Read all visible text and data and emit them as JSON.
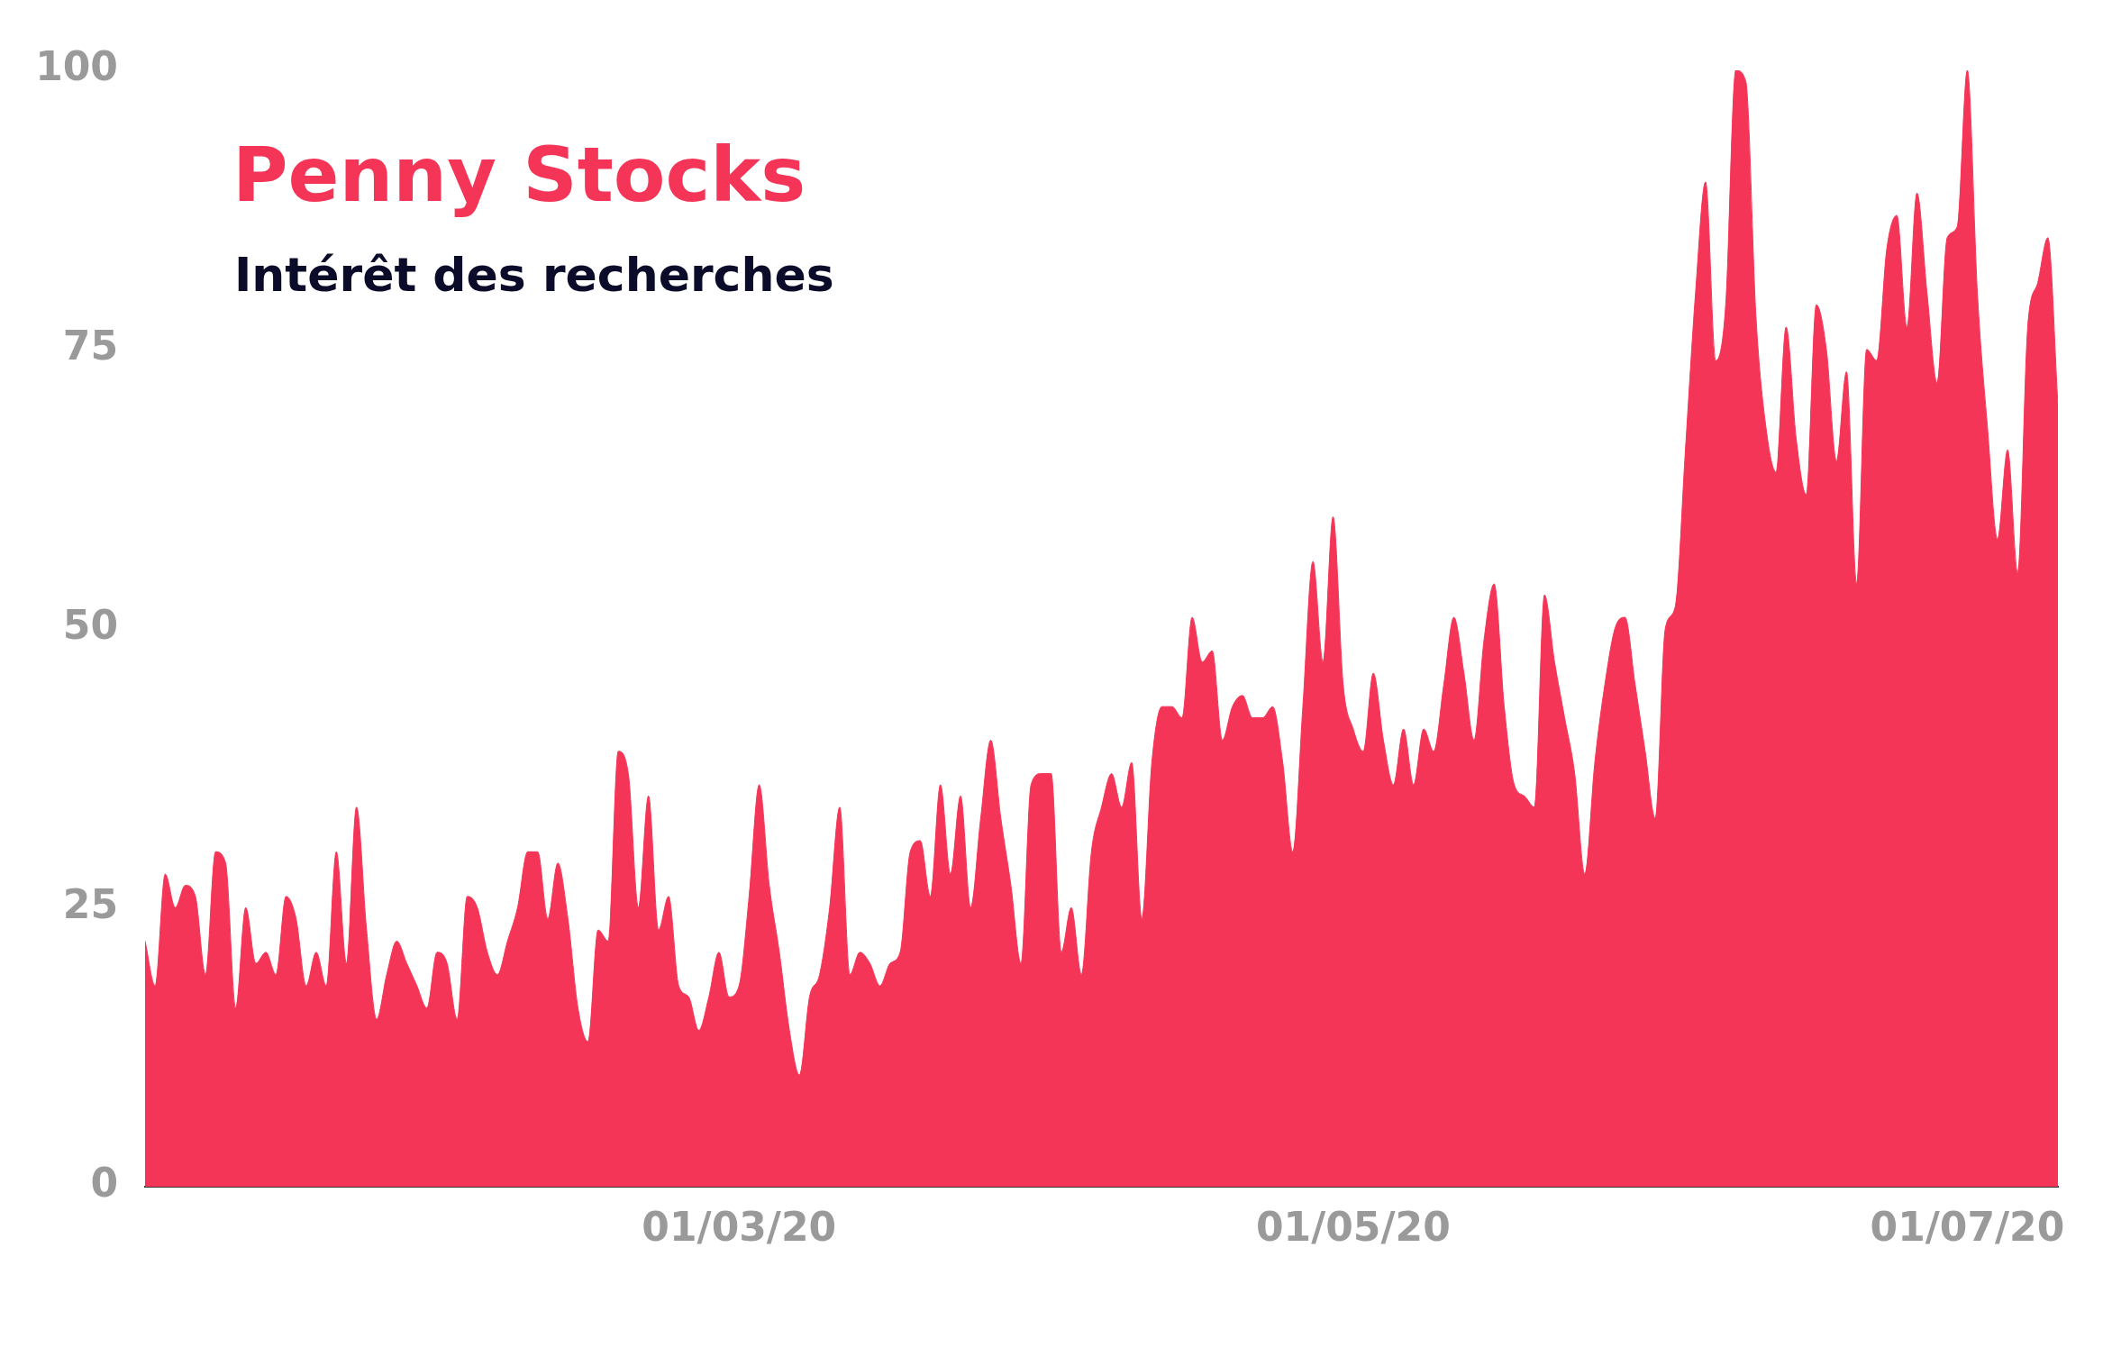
{
  "chart_data": {
    "type": "area",
    "title": "Penny Stocks",
    "subtitle": "Intérêt des recherches",
    "x": [
      "2020-01-02",
      "2020-01-03",
      "2020-01-04",
      "2020-01-05",
      "2020-01-06",
      "2020-01-07",
      "2020-01-08",
      "2020-01-09",
      "2020-01-10",
      "2020-01-11",
      "2020-01-12",
      "2020-01-13",
      "2020-01-14",
      "2020-01-15",
      "2020-01-16",
      "2020-01-17",
      "2020-01-18",
      "2020-01-19",
      "2020-01-20",
      "2020-01-21",
      "2020-01-22",
      "2020-01-23",
      "2020-01-24",
      "2020-01-25",
      "2020-01-26",
      "2020-01-27",
      "2020-01-28",
      "2020-01-29",
      "2020-01-30",
      "2020-01-31",
      "2020-02-01",
      "2020-02-02",
      "2020-02-03",
      "2020-02-04",
      "2020-02-05",
      "2020-02-06",
      "2020-02-07",
      "2020-02-08",
      "2020-02-09",
      "2020-02-10",
      "2020-02-11",
      "2020-02-12",
      "2020-02-13",
      "2020-02-14",
      "2020-02-15",
      "2020-02-16",
      "2020-02-17",
      "2020-02-18",
      "2020-02-19",
      "2020-02-20",
      "2020-02-21",
      "2020-02-22",
      "2020-02-23",
      "2020-02-24",
      "2020-02-25",
      "2020-02-26",
      "2020-02-27",
      "2020-02-28",
      "2020-02-29",
      "2020-03-01",
      "2020-03-02",
      "2020-03-03",
      "2020-03-04",
      "2020-03-05",
      "2020-03-06",
      "2020-03-07",
      "2020-03-08",
      "2020-03-09",
      "2020-03-10",
      "2020-03-11",
      "2020-03-12",
      "2020-03-13",
      "2020-03-14",
      "2020-03-15",
      "2020-03-16",
      "2020-03-17",
      "2020-03-18",
      "2020-03-19",
      "2020-03-20",
      "2020-03-21",
      "2020-03-22",
      "2020-03-23",
      "2020-03-24",
      "2020-03-25",
      "2020-03-26",
      "2020-03-27",
      "2020-03-28",
      "2020-03-29",
      "2020-03-30",
      "2020-03-31",
      "2020-04-01",
      "2020-04-02",
      "2020-04-03",
      "2020-04-04",
      "2020-04-05",
      "2020-04-06",
      "2020-04-07",
      "2020-04-08",
      "2020-04-09",
      "2020-04-10",
      "2020-04-11",
      "2020-04-12",
      "2020-04-13",
      "2020-04-14",
      "2020-04-15",
      "2020-04-16",
      "2020-04-17",
      "2020-04-18",
      "2020-04-19",
      "2020-04-20",
      "2020-04-21",
      "2020-04-22",
      "2020-04-23",
      "2020-04-24",
      "2020-04-25",
      "2020-04-26",
      "2020-04-27",
      "2020-04-28",
      "2020-04-29",
      "2020-04-30",
      "2020-05-01",
      "2020-05-02",
      "2020-05-03",
      "2020-05-04",
      "2020-05-05",
      "2020-05-06",
      "2020-05-07",
      "2020-05-08",
      "2020-05-09",
      "2020-05-10",
      "2020-05-11",
      "2020-05-12",
      "2020-05-13",
      "2020-05-14",
      "2020-05-15",
      "2020-05-16",
      "2020-05-17",
      "2020-05-18",
      "2020-05-19",
      "2020-05-20",
      "2020-05-21",
      "2020-05-22",
      "2020-05-23",
      "2020-05-24",
      "2020-05-25",
      "2020-05-26",
      "2020-05-27",
      "2020-05-28",
      "2020-05-29",
      "2020-05-30",
      "2020-05-31",
      "2020-06-01",
      "2020-06-02",
      "2020-06-03",
      "2020-06-04",
      "2020-06-05",
      "2020-06-06",
      "2020-06-07",
      "2020-06-08",
      "2020-06-09",
      "2020-06-10",
      "2020-06-11",
      "2020-06-12",
      "2020-06-13",
      "2020-06-14",
      "2020-06-15",
      "2020-06-16",
      "2020-06-17",
      "2020-06-18",
      "2020-06-19",
      "2020-06-20",
      "2020-06-21",
      "2020-06-22",
      "2020-06-23",
      "2020-06-24",
      "2020-06-25",
      "2020-06-26",
      "2020-06-27",
      "2020-06-28",
      "2020-06-29",
      "2020-06-30",
      "2020-07-01",
      "2020-07-02",
      "2020-07-03",
      "2020-07-04",
      "2020-07-05",
      "2020-07-06",
      "2020-07-07",
      "2020-07-08",
      "2020-07-09",
      "2020-07-10"
    ],
    "series": [
      {
        "color": "#f53557",
        "values": [
          22,
          18,
          28,
          25,
          27,
          26,
          19,
          30,
          29,
          16,
          25,
          20,
          21,
          19,
          26,
          24,
          18,
          21,
          18,
          30,
          20,
          34,
          23,
          15,
          19,
          22,
          20,
          18,
          16,
          21,
          20,
          15,
          26,
          25,
          21,
          19,
          22,
          25,
          30,
          30,
          24,
          29,
          24,
          16,
          13,
          23,
          22,
          39,
          37,
          25,
          35,
          23,
          26,
          18,
          17,
          14,
          17,
          21,
          17,
          18,
          26,
          36,
          27,
          21,
          14,
          10,
          17,
          19,
          25,
          34,
          19,
          21,
          20,
          18,
          20,
          21,
          30,
          31,
          26,
          36,
          28,
          35,
          25,
          33,
          40,
          33,
          27,
          20,
          36,
          37,
          37,
          21,
          25,
          19,
          30,
          34,
          37,
          34,
          38,
          24,
          38,
          43,
          43,
          42,
          51,
          47,
          48,
          40,
          43,
          44,
          42,
          42,
          43,
          38,
          30,
          43,
          56,
          47,
          60,
          45,
          41,
          39,
          46,
          40,
          36,
          41,
          36,
          41,
          39,
          45,
          51,
          46,
          40,
          49,
          54,
          43,
          36,
          35,
          34,
          53,
          47,
          42,
          37,
          28,
          38,
          45,
          50,
          51,
          45,
          39,
          33,
          50,
          52,
          66,
          80,
          90,
          74,
          79,
          100,
          99,
          78,
          68,
          64,
          77,
          67,
          62,
          79,
          75,
          65,
          73,
          54,
          75,
          74,
          84,
          87,
          77,
          89,
          80,
          72,
          85,
          86,
          100,
          80,
          68,
          58,
          66,
          55,
          77,
          81,
          85,
          70
        ]
      }
    ],
    "xlim": [
      "2020-01-02",
      "2020-07-10"
    ],
    "xticks": [
      {
        "value": "2020-03-01",
        "label": "01/03/20"
      },
      {
        "value": "2020-05-01",
        "label": "01/05/20"
      },
      {
        "value": "2020-07-01",
        "label": "01/07/20"
      }
    ],
    "ylim": [
      0,
      100
    ],
    "yticks": [
      0,
      25,
      50,
      75,
      100
    ],
    "grid": false,
    "legend": false
  }
}
